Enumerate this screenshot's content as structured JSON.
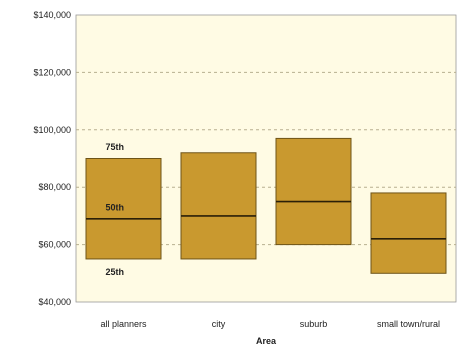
{
  "chart_data": {
    "type": "box",
    "title": "",
    "xlabel": "Area",
    "ylabel": "",
    "ylim": [
      40000,
      140000
    ],
    "y_ticks": [
      40000,
      60000,
      80000,
      100000,
      120000,
      140000
    ],
    "y_tick_labels": [
      "$40,000",
      "$60,000",
      "$80,000",
      "$100,000",
      "$120,000",
      "$140,000"
    ],
    "grid": true,
    "categories": [
      "all planners",
      "city",
      "suburb",
      "small town/rural"
    ],
    "boxes": [
      {
        "category": "all planners",
        "p25": 55000,
        "median": 69000,
        "p75": 90000
      },
      {
        "category": "city",
        "p25": 55000,
        "median": 70000,
        "p75": 92000
      },
      {
        "category": "suburb",
        "p25": 60000,
        "median": 75000,
        "p75": 97000
      },
      {
        "category": "small town/rural",
        "p25": 50000,
        "median": 62000,
        "p75": 78000
      }
    ],
    "annotations": [
      {
        "text": "75th",
        "category": "all planners",
        "y": 94000
      },
      {
        "text": "50th",
        "category": "all planners",
        "y": 73000
      },
      {
        "text": "25th",
        "category": "all planners",
        "y": 50500
      }
    ],
    "colors": {
      "plot_background": "#fffbe4",
      "box_fill": "#c9992f",
      "box_stroke": "#6e5418",
      "median_line": "#2a1f08",
      "grid": "#b8b090"
    }
  }
}
